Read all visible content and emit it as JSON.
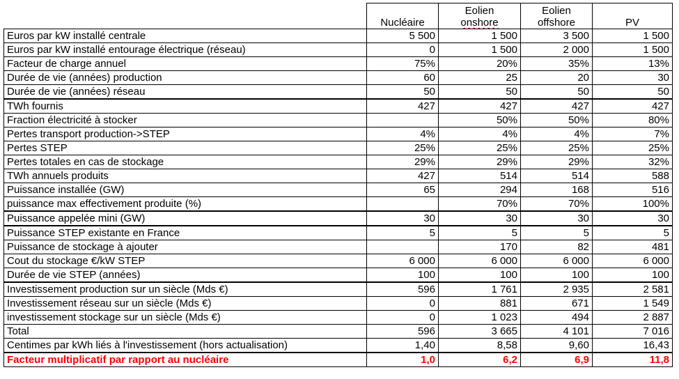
{
  "columns": [
    "Nucléaire",
    "Eolien onshore",
    "Eolien offshore",
    "PV"
  ],
  "column_lines": [
    [
      "Nucléaire"
    ],
    [
      "Eolien",
      "onshore"
    ],
    [
      "Eolien",
      "offshore"
    ],
    [
      "PV"
    ]
  ],
  "rows": [
    {
      "label": "Euros par kW installé centrale",
      "values": [
        "5 500",
        "1 500",
        "3 500",
        "1 500"
      ]
    },
    {
      "label": "Euros par kW installé entourage électrique (réseau)",
      "values": [
        "0",
        "1 500",
        "2 000",
        "1 500"
      ]
    },
    {
      "label": "Facteur de charge annuel",
      "values": [
        "75%",
        "20%",
        "35%",
        "13%"
      ]
    },
    {
      "label": "Durée de vie (années) production",
      "values": [
        "60",
        "25",
        "20",
        "30"
      ]
    },
    {
      "label": "Durée de vie (années) réseau",
      "values": [
        "50",
        "50",
        "50",
        "50"
      ]
    },
    {
      "label": "TWh fournis",
      "values": [
        "427",
        "427",
        "427",
        "427"
      ],
      "sep": true
    },
    {
      "label": "Fraction électricité à stocker",
      "values": [
        "",
        "50%",
        "50%",
        "80%"
      ]
    },
    {
      "label": "Pertes transport production->STEP",
      "values": [
        "4%",
        "4%",
        "4%",
        "7%"
      ]
    },
    {
      "label": "Pertes STEP",
      "values": [
        "25%",
        "25%",
        "25%",
        "25%"
      ]
    },
    {
      "label": "Pertes totales en cas de stockage",
      "values": [
        "29%",
        "29%",
        "29%",
        "32%"
      ]
    },
    {
      "label": "TWh annuels produits",
      "values": [
        "427",
        "514",
        "514",
        "588"
      ]
    },
    {
      "label": "Puissance installée (GW)",
      "values": [
        "65",
        "294",
        "168",
        "516"
      ]
    },
    {
      "label": "puissance max effectivement produite (%)",
      "values": [
        "",
        "70%",
        "70%",
        "100%"
      ]
    },
    {
      "label": "Puissance appelée mini (GW)",
      "values": [
        "30",
        "30",
        "30",
        "30"
      ],
      "sep": true
    },
    {
      "label": "Puissance STEP existante en France",
      "values": [
        "5",
        "5",
        "5",
        "5"
      ],
      "sep": true
    },
    {
      "label": "Puissance de stockage à ajouter",
      "values": [
        "",
        "170",
        "82",
        "481"
      ]
    },
    {
      "label": "Cout du stockage €/kW STEP",
      "values": [
        "6 000",
        "6 000",
        "6 000",
        "6 000"
      ]
    },
    {
      "label": "Durée de vie STEP (années)",
      "values": [
        "100",
        "100",
        "100",
        "100"
      ]
    },
    {
      "label": "Investissement production sur un siècle (Mds €)",
      "values": [
        "596",
        "1 761",
        "2 935",
        "2 581"
      ],
      "sep": true
    },
    {
      "label": "Investissement réseau sur un siècle (Mds €)",
      "values": [
        "0",
        "881",
        "671",
        "1 549"
      ]
    },
    {
      "label": "investissement stockage sur un siècle (Mds €)",
      "values": [
        "0",
        "1 023",
        "494",
        "2 887"
      ]
    },
    {
      "label": "Total",
      "values": [
        "596",
        "3 665",
        "4 101",
        "7 016"
      ]
    },
    {
      "label": "Centimes par kWh liés à l'investissement (hors actualisation)",
      "values": [
        "1,40",
        "8,58",
        "9,60",
        "16,43"
      ]
    },
    {
      "label": "Facteur multiplicatif par rapport au nucléaire",
      "values": [
        "1,0",
        "6,2",
        "6,9",
        "11,8"
      ],
      "highlight": true,
      "sep": true
    }
  ],
  "colors": {
    "highlight": "#ff0000",
    "text": "#000000",
    "background": "#ffffff"
  }
}
